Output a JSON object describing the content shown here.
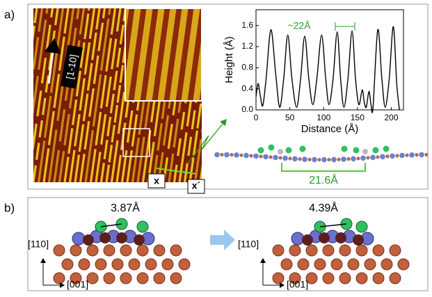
{
  "panel_a": {
    "label": "a)",
    "direction": "[1-10]",
    "x_start": "x",
    "x_end": "x´",
    "period": "21.6Å"
  },
  "chart_data": {
    "type": "line",
    "x_label": "Distance (Å)",
    "y_label": "Height (Å)",
    "annotation": "~22Å",
    "color": "#000000",
    "annotation_color": "#2a9a2a",
    "x": [
      0,
      3,
      6,
      10,
      15,
      22,
      29,
      35,
      41,
      47,
      53,
      60,
      66,
      72,
      78,
      84,
      90,
      97,
      103,
      108,
      114,
      120,
      125,
      130,
      136,
      142,
      147,
      152,
      157,
      160,
      163,
      167,
      170,
      173,
      180,
      186,
      191,
      197,
      203,
      208,
      212
    ],
    "values": [
      0.25,
      0.5,
      0.3,
      0.08,
      0.6,
      1.52,
      0.7,
      0.05,
      0.6,
      1.42,
      0.6,
      0.05,
      0.6,
      1.4,
      0.6,
      0.1,
      0.6,
      1.42,
      0.6,
      0.1,
      0.6,
      1.48,
      0.6,
      0.05,
      0.6,
      1.5,
      0.6,
      0.1,
      0.38,
      0.15,
      0.05,
      0.35,
      0.1,
      0.05,
      1.52,
      0.6,
      0.05,
      0.6,
      1.58,
      0.5,
      0.0
    ],
    "xlim": [
      0,
      218
    ],
    "xticks": [
      0,
      50,
      100,
      150,
      200
    ],
    "ylim": [
      0,
      1.9
    ],
    "yticks": [
      {
        "value": 0,
        "label": "0.0"
      },
      0.4,
      0.8,
      1.2,
      1.6
    ]
  },
  "panel_b": {
    "label": "b)",
    "left": {
      "distance": "3.87Å",
      "axis_y": "[110]",
      "axis_x": "[001]"
    },
    "right": {
      "distance": "4.39Å",
      "axis_y": "[110]",
      "axis_x": "[001]"
    }
  }
}
